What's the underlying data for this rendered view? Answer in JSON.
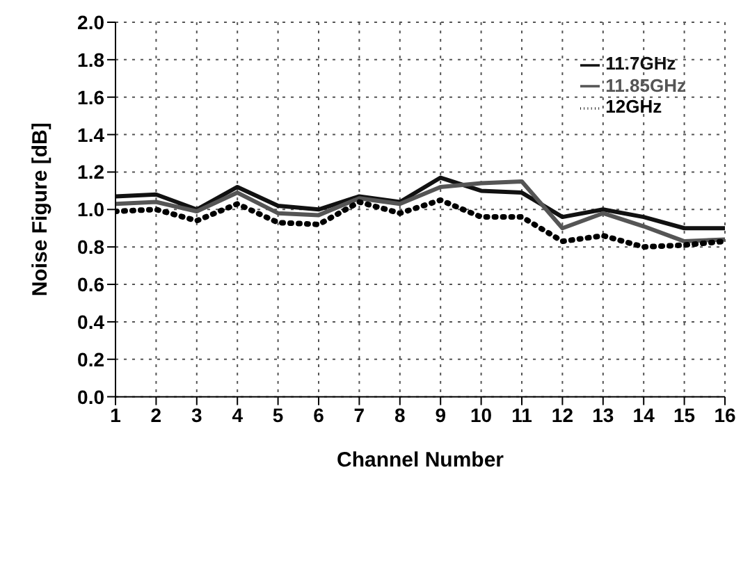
{
  "chart_data": {
    "type": "line",
    "xlabel": "Channel Number",
    "ylabel": "Noise Figure [dB]",
    "x": [
      1,
      2,
      3,
      4,
      5,
      6,
      7,
      8,
      9,
      10,
      11,
      12,
      13,
      14,
      15,
      16
    ],
    "xlim": [
      1,
      16
    ],
    "xticks": [
      1,
      2,
      3,
      4,
      5,
      6,
      7,
      8,
      9,
      10,
      11,
      12,
      13,
      14,
      15,
      16
    ],
    "ylim": [
      0,
      2
    ],
    "yticks": [
      {
        "value": 0,
        "label": "0.0"
      },
      0.2,
      0.4,
      0.6,
      0.8,
      {
        "value": 1,
        "label": "1.0"
      },
      1.2,
      1.4,
      1.6,
      1.8,
      {
        "value": 2,
        "label": "2.0"
      }
    ],
    "grid": true,
    "legend": "top right",
    "series": [
      {
        "name": "11.7GHz",
        "color": "#111111",
        "line_style": "solid",
        "values": [
          1.07,
          1.08,
          1.0,
          1.12,
          1.02,
          1.0,
          1.07,
          1.04,
          1.17,
          1.1,
          1.09,
          0.96,
          1.0,
          0.96,
          0.9,
          0.9
        ]
      },
      {
        "name": "11.85GHz",
        "color": "#555555",
        "line_style": "solid",
        "values": [
          1.03,
          1.04,
          0.99,
          1.09,
          0.98,
          0.97,
          1.06,
          1.03,
          1.12,
          1.14,
          1.15,
          0.9,
          0.98,
          0.91,
          0.83,
          0.84
        ]
      },
      {
        "name": "12GHz",
        "color": "#000000",
        "line_style": "dotted",
        "values": [
          0.99,
          1.0,
          0.94,
          1.03,
          0.93,
          0.92,
          1.04,
          0.98,
          1.05,
          0.96,
          0.96,
          0.83,
          0.86,
          0.8,
          0.81,
          0.83
        ]
      }
    ]
  }
}
